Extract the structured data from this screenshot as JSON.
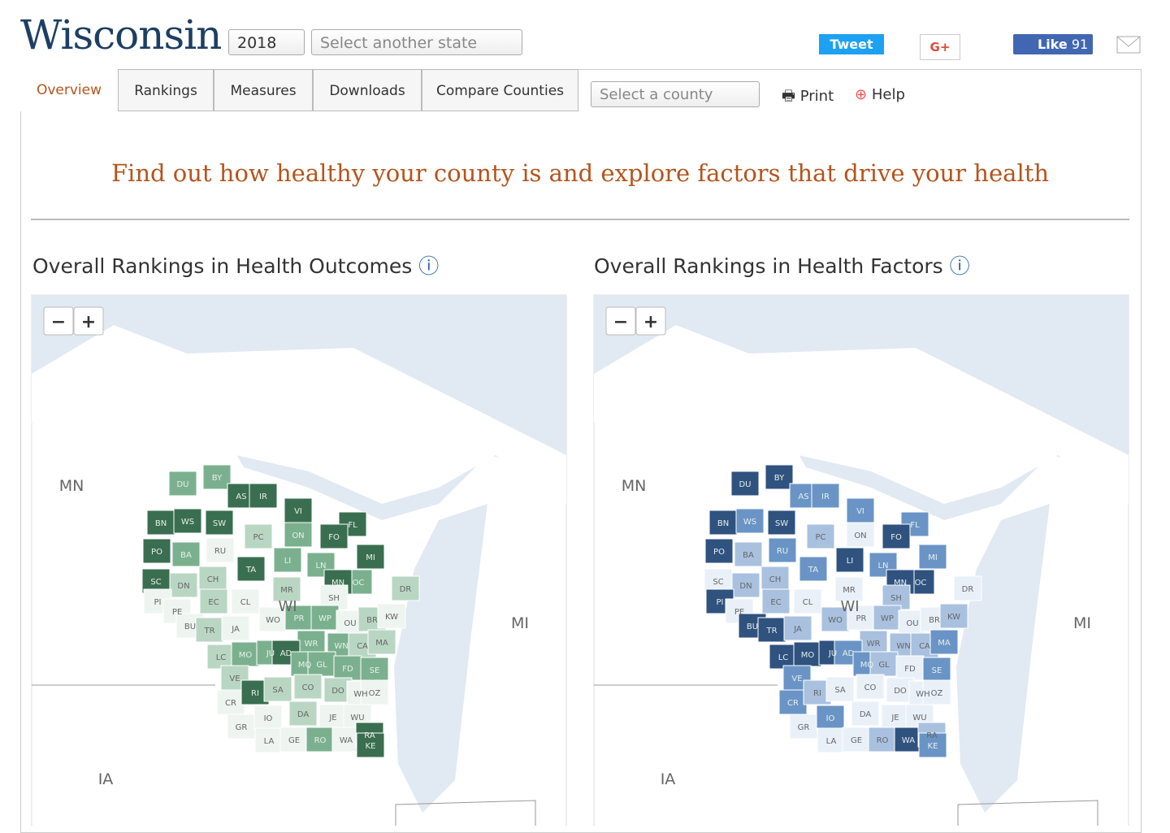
{
  "header": {
    "state": "Wisconsin",
    "year": "2018",
    "state_select": "Select another state",
    "share": {
      "tweet": "Tweet",
      "gplus": "G+",
      "like": "Like",
      "like_count": "91"
    }
  },
  "tabs": [
    "Overview",
    "Rankings",
    "Measures",
    "Downloads",
    "Compare Counties"
  ],
  "county_select": "Select a county",
  "print": "Print",
  "help": "Help",
  "headline": "Find out how healthy your county is and explore factors that drive your health",
  "zoom": [
    "−",
    "+"
  ],
  "maps": [
    {
      "title": "Overall Rankings in Health Outcomes"
    },
    {
      "title": "Overall Rankings in Health Factors"
    }
  ],
  "region_labels": [
    "MN",
    "MI",
    "IA"
  ],
  "state_label": "WI",
  "county_labels": [
    "DU",
    "BY",
    "AS",
    "IR",
    "VI",
    "FL",
    "BN",
    "WS",
    "SW",
    "PC",
    "ON",
    "FO",
    "MI",
    "PO",
    "BA",
    "RU",
    "LI",
    "LN",
    "TA",
    "OC",
    "MN",
    "SC",
    "DN",
    "CH",
    "MR",
    "SH",
    "DR",
    "PI",
    "PE",
    "EC",
    "CL",
    "WO",
    "PR",
    "WP",
    "OU",
    "BR",
    "KW",
    "BU",
    "TR",
    "JA",
    "WR",
    "WN",
    "CA",
    "MA",
    "LC",
    "MO",
    "JU",
    "AD",
    "MQ",
    "GL",
    "FD",
    "SE",
    "VE",
    "CR",
    "RI",
    "SA",
    "CO",
    "DO",
    "WH",
    "OZ",
    "GR",
    "IO",
    "DA",
    "JE",
    "WU",
    "LA",
    "GE",
    "RO",
    "WA",
    "RA",
    "KE"
  ]
}
